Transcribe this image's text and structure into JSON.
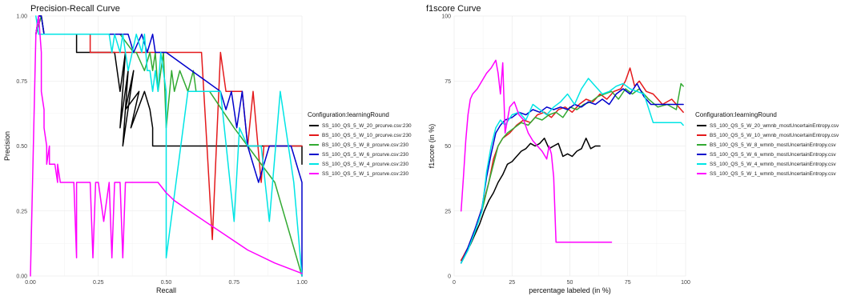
{
  "chart_data": [
    {
      "type": "line",
      "title": "Precision-Recall Curve",
      "xlabel": "Recall",
      "ylabel": "Precision",
      "xlim": [
        0,
        1
      ],
      "ylim": [
        0,
        1
      ],
      "x_ticks": [
        "0.00",
        "0.25",
        "0.50",
        "0.75",
        "1.00"
      ],
      "y_ticks": [
        "0.00",
        "0.25",
        "0.50",
        "0.75",
        "1.00"
      ],
      "grid": true,
      "legend_title": "Configuration:learningRound",
      "legend_position": "right",
      "series": [
        {
          "name": "SS_100_QS_5_W_20_prcurve.csv:230",
          "color": "#000000",
          "x": [
            0.02,
            0.03,
            0.04,
            0.05,
            0.17,
            0.17,
            0.22,
            0.31,
            0.33,
            0.35,
            0.33,
            0.36,
            0.34,
            0.38,
            0.35,
            0.4,
            0.37,
            0.42,
            0.44,
            0.45,
            0.45,
            0.8,
            1.0,
            1.0
          ],
          "y": [
            0.93,
            1.0,
            1.0,
            0.93,
            0.93,
            0.86,
            0.86,
            0.86,
            0.71,
            0.86,
            0.57,
            0.79,
            0.5,
            0.79,
            0.64,
            0.71,
            0.57,
            0.71,
            0.64,
            0.57,
            0.5,
            0.5,
            0.5,
            0.43
          ]
        },
        {
          "name": "BS_100_QS_5_W_10_prcurve.csv:230",
          "color": "#e41a1c",
          "x": [
            0.02,
            0.04,
            0.05,
            0.17,
            0.22,
            0.22,
            0.23,
            0.5,
            0.5,
            0.55,
            0.63,
            0.65,
            0.67,
            0.7,
            0.72,
            0.75,
            0.78,
            0.8,
            0.82,
            0.85,
            0.86,
            0.9,
            1.0
          ],
          "y": [
            0.93,
            1.0,
            0.93,
            0.93,
            0.93,
            0.86,
            0.86,
            0.86,
            0.86,
            0.86,
            0.86,
            0.5,
            0.14,
            0.86,
            0.71,
            0.71,
            0.71,
            0.5,
            0.71,
            0.36,
            0.5,
            0.5,
            0.5
          ]
        },
        {
          "name": "BS_100_QS_5_W_8_prcurve.csv:230",
          "color": "#33aa33",
          "x": [
            0.02,
            0.04,
            0.05,
            0.33,
            0.38,
            0.39,
            0.42,
            0.44,
            0.45,
            0.46,
            0.47,
            0.49,
            0.5,
            0.52,
            0.53,
            0.55,
            0.58,
            0.6,
            0.61,
            0.66,
            0.75,
            0.8,
            0.9,
            1.0
          ],
          "y": [
            0.93,
            1.0,
            0.93,
            0.93,
            0.86,
            0.86,
            0.79,
            0.86,
            0.79,
            0.86,
            0.71,
            0.86,
            0.57,
            0.79,
            0.71,
            0.79,
            0.71,
            0.79,
            0.71,
            0.71,
            0.57,
            0.5,
            0.36,
            0.0
          ]
        },
        {
          "name": "SS_100_QS_5_W_6_prcurve.csv:230",
          "color": "#0000cc",
          "x": [
            0.02,
            0.03,
            0.04,
            0.05,
            0.36,
            0.38,
            0.41,
            0.43,
            0.45,
            0.46,
            0.5,
            0.7,
            0.72,
            0.74,
            0.76,
            0.78,
            0.8,
            0.84,
            0.88,
            0.96,
            1.0,
            1.0
          ],
          "y": [
            0.93,
            1.0,
            1.0,
            0.93,
            0.93,
            0.86,
            0.93,
            0.86,
            0.93,
            0.86,
            0.86,
            0.71,
            0.64,
            0.71,
            0.57,
            0.71,
            0.5,
            0.36,
            0.5,
            0.5,
            0.36,
            0.0
          ]
        },
        {
          "name": "SS_100_QS_5_W_4_prcurve.csv:230",
          "color": "#00e5e5",
          "x": [
            0.02,
            0.03,
            0.05,
            0.29,
            0.3,
            0.31,
            0.33,
            0.34,
            0.36,
            0.39,
            0.41,
            0.42,
            0.43,
            0.44,
            0.45,
            0.46,
            0.47,
            0.48,
            0.5,
            0.5,
            0.58,
            0.62,
            0.66,
            0.7,
            0.75,
            0.77,
            0.8,
            0.85,
            0.88,
            0.92,
            0.97,
            1.0
          ],
          "y": [
            1.0,
            0.93,
            0.93,
            0.93,
            0.86,
            0.93,
            0.86,
            0.93,
            0.79,
            0.93,
            0.86,
            0.93,
            0.79,
            0.79,
            0.71,
            0.79,
            0.71,
            0.86,
            0.71,
            0.07,
            0.71,
            0.71,
            0.71,
            0.71,
            0.21,
            0.57,
            0.5,
            0.5,
            0.21,
            0.71,
            0.36,
            0.0
          ]
        },
        {
          "name": "SS_100_QS_5_W_1_prcurve.csv:230",
          "color": "#ff00ff",
          "x": [
            0.0,
            0.02,
            0.03,
            0.04,
            0.04,
            0.05,
            0.05,
            0.06,
            0.06,
            0.07,
            0.07,
            0.08,
            0.09,
            0.1,
            0.1,
            0.11,
            0.13,
            0.16,
            0.17,
            0.17,
            0.22,
            0.23,
            0.24,
            0.25,
            0.27,
            0.29,
            0.3,
            0.31,
            0.33,
            0.34,
            0.35,
            0.36,
            0.4,
            0.45,
            0.47,
            0.5,
            0.53,
            0.6,
            0.7,
            0.8,
            0.9,
            1.0
          ],
          "y": [
            0.0,
            0.93,
            1.0,
            0.86,
            0.71,
            0.64,
            0.57,
            0.5,
            0.43,
            0.5,
            0.43,
            0.43,
            0.43,
            0.36,
            0.43,
            0.36,
            0.36,
            0.36,
            0.07,
            0.36,
            0.36,
            0.07,
            0.36,
            0.36,
            0.21,
            0.36,
            0.07,
            0.36,
            0.36,
            0.07,
            0.36,
            0.36,
            0.36,
            0.36,
            0.36,
            0.32,
            0.29,
            0.24,
            0.17,
            0.1,
            0.05,
            0.01
          ]
        }
      ]
    },
    {
      "type": "line",
      "title": "f1score Curve",
      "xlabel": "percentage labeled (in %)",
      "ylabel": "f1score (in %)",
      "xlim": [
        0,
        100
      ],
      "ylim": [
        0,
        100
      ],
      "x_ticks": [
        "0",
        "25",
        "50",
        "75",
        "100"
      ],
      "y_ticks": [
        "0",
        "25",
        "50",
        "75",
        "100"
      ],
      "grid": true,
      "legend_title": "Configuration:learningRound",
      "legend_position": "right",
      "series": [
        {
          "name": "SS_100_QS_5_W_20_wmnb_mostUncertainEntropy.csv",
          "color": "#000000",
          "x": [
            3,
            5,
            7,
            9,
            11,
            13,
            15,
            17,
            19,
            21,
            23,
            25,
            27,
            29,
            31,
            33,
            35,
            37,
            39,
            41,
            43,
            45,
            47,
            49,
            51,
            53,
            55,
            57,
            59,
            61,
            63
          ],
          "y": [
            6,
            9,
            12,
            16,
            20,
            25,
            29,
            32,
            36,
            39,
            43,
            44,
            46,
            48,
            49,
            51,
            50,
            51,
            53,
            49,
            50,
            51,
            46,
            47,
            46,
            48,
            49,
            53,
            49,
            50,
            50
          ]
        },
        {
          "name": "BS_100_QS_5_W_10_wmnb_mostUncertainEntropy.csv",
          "color": "#e41a1c",
          "x": [
            3,
            6,
            9,
            12,
            15,
            17,
            19,
            21,
            24,
            27,
            30,
            33,
            36,
            39,
            42,
            45,
            48,
            51,
            54,
            57,
            60,
            63,
            66,
            69,
            72,
            74,
            76,
            78,
            80,
            83,
            86,
            90,
            94,
            98,
            99
          ],
          "y": [
            6,
            11,
            18,
            26,
            36,
            45,
            50,
            53,
            55,
            58,
            60,
            59,
            62,
            63,
            61,
            64,
            65,
            63,
            66,
            68,
            67,
            70,
            68,
            71,
            72,
            75,
            80,
            73,
            75,
            71,
            70,
            66,
            68,
            64,
            63
          ]
        },
        {
          "name": "BS_100_QS_5_W_8_wmnb_mostUncertainEntropy.csv",
          "color": "#33aa33",
          "x": [
            3,
            6,
            9,
            12,
            15,
            17,
            19,
            21,
            23,
            26,
            29,
            32,
            35,
            38,
            41,
            44,
            47,
            50,
            53,
            56,
            59,
            62,
            65,
            68,
            71,
            74,
            77,
            80,
            84,
            88,
            92,
            96,
            98,
            99
          ],
          "y": [
            5,
            10,
            17,
            25,
            36,
            43,
            50,
            53,
            55,
            57,
            59,
            58,
            61,
            60,
            62,
            63,
            61,
            65,
            64,
            66,
            67,
            69,
            70,
            71,
            68,
            72,
            70,
            72,
            68,
            65,
            66,
            64,
            74,
            73
          ]
        },
        {
          "name": "SS_100_QS_5_W_6_wmnb_mostUncertainEntropy.csv",
          "color": "#0000cc",
          "x": [
            3,
            6,
            9,
            12,
            14,
            16,
            18,
            20,
            22,
            25,
            28,
            31,
            34,
            37,
            40,
            43,
            46,
            49,
            52,
            55,
            58,
            61,
            64,
            67,
            70,
            73,
            76,
            79,
            82,
            85,
            90,
            95,
            99
          ],
          "y": [
            5,
            11,
            18,
            26,
            38,
            47,
            55,
            58,
            60,
            61,
            63,
            62,
            64,
            63,
            65,
            64,
            65,
            64,
            66,
            65,
            67,
            66,
            68,
            66,
            70,
            72,
            70,
            74,
            69,
            66,
            66,
            66,
            66
          ]
        },
        {
          "name": "SS_100_QS_5_W_4_wmnb_mostUncertainEntropy.csv",
          "color": "#00e5e5",
          "x": [
            3,
            6,
            9,
            12,
            14,
            16,
            18,
            20,
            22,
            25,
            28,
            31,
            34,
            37,
            40,
            43,
            46,
            49,
            52,
            55,
            58,
            61,
            64,
            67,
            70,
            73,
            76,
            79,
            82,
            86,
            90,
            94,
            98,
            99
          ],
          "y": [
            5,
            10,
            17,
            25,
            40,
            50,
            57,
            60,
            58,
            62,
            63,
            60,
            66,
            64,
            62,
            65,
            67,
            70,
            66,
            72,
            76,
            73,
            70,
            71,
            73,
            74,
            72,
            71,
            70,
            59,
            59,
            59,
            59,
            58
          ]
        },
        {
          "name": "SS_100_QS_5_W_1_wmnb_mostUncertainEntropy.csv",
          "color": "#ff00ff",
          "x": [
            3,
            4,
            5,
            6,
            7,
            8,
            10,
            12,
            14,
            16,
            18,
            19,
            20,
            21,
            22,
            23,
            24,
            26,
            28,
            30,
            32,
            34,
            36,
            38,
            40,
            41,
            42,
            43,
            44,
            46,
            50,
            55,
            60,
            65,
            68
          ],
          "y": [
            25,
            38,
            52,
            62,
            68,
            70,
            72,
            75,
            78,
            80,
            83,
            78,
            70,
            82,
            55,
            60,
            65,
            67,
            62,
            60,
            55,
            52,
            50,
            48,
            45,
            50,
            47,
            38,
            13,
            13,
            13,
            13,
            13,
            13,
            13
          ]
        }
      ]
    }
  ]
}
